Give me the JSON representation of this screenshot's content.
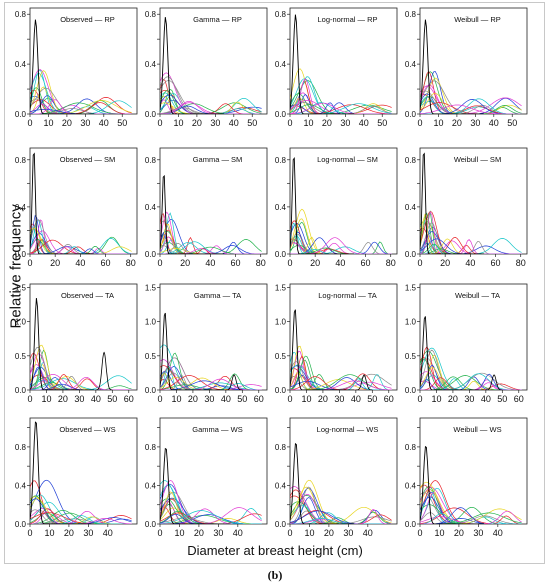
{
  "figure": {
    "ylabel": "Relative frequency",
    "xlabel": "Diameter at breast height (cm)",
    "caption": "(b)"
  },
  "colors": [
    "#000000",
    "#e8232a",
    "#21b24b",
    "#1f3fd6",
    "#16c6c9",
    "#e23ad3",
    "#e8d521",
    "#8c8c8c"
  ],
  "chart_data": [
    {
      "type": "line",
      "title": "Observed  — RP",
      "panel_row": 0,
      "panel_col": 0,
      "row": "RP",
      "model": "Observed",
      "xlim": [
        0,
        58
      ],
      "ylim": [
        0,
        0.85
      ],
      "xticks": [
        0,
        10,
        20,
        30,
        40,
        50
      ],
      "yticks": [
        0,
        0.2,
        0.4,
        0.6,
        0.8
      ],
      "ytick_labels": [
        "0.0",
        "",
        "0.4",
        "",
        "0.8"
      ],
      "spike_x": 3,
      "spike_y": 0.76
    },
    {
      "type": "line",
      "title": "Gamma  — RP",
      "panel_row": 0,
      "panel_col": 1,
      "row": "RP",
      "model": "Gamma",
      "xlim": [
        0,
        58
      ],
      "ylim": [
        0,
        0.85
      ],
      "xticks": [
        0,
        10,
        20,
        30,
        40,
        50
      ],
      "yticks": [
        0,
        0.2,
        0.4,
        0.6,
        0.8
      ],
      "ytick_labels": [
        "0.0",
        "",
        "0.4",
        "",
        "0.8"
      ],
      "spike_x": 3,
      "spike_y": 0.78
    },
    {
      "type": "line",
      "title": "Log-normal  — RP",
      "panel_row": 0,
      "panel_col": 2,
      "row": "RP",
      "model": "Log-normal",
      "xlim": [
        0,
        58
      ],
      "ylim": [
        0,
        0.85
      ],
      "xticks": [
        0,
        10,
        20,
        30,
        40,
        50
      ],
      "yticks": [
        0,
        0.2,
        0.4,
        0.6,
        0.8
      ],
      "ytick_labels": [
        "0.0",
        "",
        "0.4",
        "",
        "0.8"
      ],
      "spike_x": 3,
      "spike_y": 0.8
    },
    {
      "type": "line",
      "title": "Weibull  — RP",
      "panel_row": 0,
      "panel_col": 3,
      "row": "RP",
      "model": "Weibull",
      "xlim": [
        0,
        58
      ],
      "ylim": [
        0,
        0.85
      ],
      "xticks": [
        0,
        10,
        20,
        30,
        40,
        50
      ],
      "yticks": [
        0,
        0.2,
        0.4,
        0.6,
        0.8
      ],
      "ytick_labels": [
        "0.0",
        "",
        "0.4",
        "",
        "0.8"
      ],
      "spike_x": 3,
      "spike_y": 0.76
    },
    {
      "type": "line",
      "title": "Observed  — SM",
      "panel_row": 1,
      "panel_col": 0,
      "row": "SM",
      "model": "Observed",
      "xlim": [
        0,
        85
      ],
      "ylim": [
        0,
        0.9
      ],
      "xticks": [
        0,
        20,
        40,
        60,
        80
      ],
      "yticks": [
        0,
        0.2,
        0.4,
        0.6,
        0.8
      ],
      "ytick_labels": [
        "0.0",
        "",
        "0.4",
        "",
        "0.8"
      ],
      "spike_x": 3,
      "spike_y": 0.9
    },
    {
      "type": "line",
      "title": "Gamma  — SM",
      "panel_row": 1,
      "panel_col": 1,
      "row": "SM",
      "model": "Gamma",
      "xlim": [
        0,
        85
      ],
      "ylim": [
        0,
        0.9
      ],
      "xticks": [
        0,
        20,
        40,
        60,
        80
      ],
      "yticks": [
        0,
        0.2,
        0.4,
        0.6,
        0.8
      ],
      "ytick_labels": [
        "0.0",
        "",
        "0.4",
        "",
        "0.8"
      ],
      "spike_x": 3,
      "spike_y": 0.7
    },
    {
      "type": "line",
      "title": "Log-normal  — SM",
      "panel_row": 1,
      "panel_col": 2,
      "row": "SM",
      "model": "Log-normal",
      "xlim": [
        0,
        85
      ],
      "ylim": [
        0,
        0.9
      ],
      "xticks": [
        0,
        20,
        40,
        60,
        80
      ],
      "yticks": [
        0,
        0.2,
        0.4,
        0.6,
        0.8
      ],
      "ytick_labels": [
        "0.0",
        "",
        "0.4",
        "",
        "0.8"
      ],
      "spike_x": 3,
      "spike_y": 0.86
    },
    {
      "type": "line",
      "title": "Weibull  — SM",
      "panel_row": 1,
      "panel_col": 3,
      "row": "SM",
      "model": "Weibull",
      "xlim": [
        0,
        85
      ],
      "ylim": [
        0,
        0.9
      ],
      "xticks": [
        0,
        20,
        40,
        60,
        80
      ],
      "yticks": [
        0,
        0.2,
        0.4,
        0.6,
        0.8
      ],
      "ytick_labels": [
        "0.0",
        "",
        "0.4",
        "",
        "0.8"
      ],
      "spike_x": 3,
      "spike_y": 0.9
    },
    {
      "type": "line",
      "title": "Observed  — TA",
      "panel_row": 2,
      "panel_col": 0,
      "row": "TA",
      "model": "Observed",
      "xlim": [
        0,
        65
      ],
      "ylim": [
        0,
        1.55
      ],
      "xticks": [
        0,
        10,
        20,
        30,
        40,
        50,
        60
      ],
      "yticks": [
        0,
        0.5,
        1.0,
        1.5
      ],
      "ytick_labels": [
        "0.0",
        "0.5",
        "1.0",
        "1.5"
      ],
      "spike_x": 4,
      "spike_y": 1.35,
      "bump_x": 45,
      "bump_y": 0.55
    },
    {
      "type": "line",
      "title": "Gamma  — TA",
      "panel_row": 2,
      "panel_col": 1,
      "row": "TA",
      "model": "Gamma",
      "xlim": [
        0,
        65
      ],
      "ylim": [
        0,
        1.55
      ],
      "xticks": [
        0,
        10,
        20,
        30,
        40,
        50,
        60
      ],
      "yticks": [
        0,
        0.5,
        1.0,
        1.5
      ],
      "ytick_labels": [
        "0.0",
        "0.5",
        "1.0",
        "1.5"
      ],
      "spike_x": 3,
      "spike_y": 1.15,
      "bump_x": 45,
      "bump_y": 0.22
    },
    {
      "type": "line",
      "title": "Log-normal  — TA",
      "panel_row": 2,
      "panel_col": 2,
      "row": "TA",
      "model": "Log-normal",
      "xlim": [
        0,
        65
      ],
      "ylim": [
        0,
        1.55
      ],
      "xticks": [
        0,
        10,
        20,
        30,
        40,
        50,
        60
      ],
      "yticks": [
        0,
        0.5,
        1.0,
        1.5
      ],
      "ytick_labels": [
        "0.0",
        "0.5",
        "1.0",
        "1.5"
      ],
      "spike_x": 3,
      "spike_y": 1.2,
      "bump_x": 45,
      "bump_y": 0.22
    },
    {
      "type": "line",
      "title": "Weibull  — TA",
      "panel_row": 2,
      "panel_col": 3,
      "row": "TA",
      "model": "Weibull",
      "xlim": [
        0,
        65
      ],
      "ylim": [
        0,
        1.55
      ],
      "xticks": [
        0,
        10,
        20,
        30,
        40,
        50,
        60
      ],
      "yticks": [
        0,
        0.5,
        1.0,
        1.5
      ],
      "ytick_labels": [
        "0.0",
        "0.5",
        "1.0",
        "1.5"
      ],
      "spike_x": 3,
      "spike_y": 1.1,
      "bump_x": 45,
      "bump_y": 0.22
    },
    {
      "type": "line",
      "title": "Observed  — WS",
      "panel_row": 3,
      "panel_col": 0,
      "row": "WS",
      "model": "Observed",
      "xlim": [
        0,
        55
      ],
      "ylim": [
        0,
        1.1
      ],
      "xticks": [
        0,
        10,
        20,
        30,
        40
      ],
      "yticks": [
        0,
        0.2,
        0.4,
        0.6,
        0.8,
        1.0
      ],
      "ytick_labels": [
        "0.0",
        "",
        "0.4",
        "",
        "0.8",
        ""
      ],
      "spike_x": 3,
      "spike_y": 1.08
    },
    {
      "type": "line",
      "title": "Gamma  — WS",
      "panel_row": 3,
      "panel_col": 1,
      "row": "WS",
      "model": "Gamma",
      "xlim": [
        0,
        55
      ],
      "ylim": [
        0,
        1.1
      ],
      "xticks": [
        0,
        10,
        20,
        30,
        40
      ],
      "yticks": [
        0,
        0.2,
        0.4,
        0.6,
        0.8,
        1.0
      ],
      "ytick_labels": [
        "0.0",
        "",
        "0.4",
        "",
        "0.8",
        ""
      ],
      "spike_x": 3,
      "spike_y": 0.8
    },
    {
      "type": "line",
      "title": "Log-normal  — WS",
      "panel_row": 3,
      "panel_col": 2,
      "row": "WS",
      "model": "Log-normal",
      "xlim": [
        0,
        55
      ],
      "ylim": [
        0,
        1.1
      ],
      "xticks": [
        0,
        10,
        20,
        30,
        40
      ],
      "yticks": [
        0,
        0.2,
        0.4,
        0.6,
        0.8,
        1.0
      ],
      "ytick_labels": [
        "0.0",
        "",
        "0.4",
        "",
        "0.8",
        ""
      ],
      "spike_x": 3,
      "spike_y": 0.85
    },
    {
      "type": "line",
      "title": "Weibull  — WS",
      "panel_row": 3,
      "panel_col": 3,
      "row": "WS",
      "model": "Weibull",
      "xlim": [
        0,
        55
      ],
      "ylim": [
        0,
        1.1
      ],
      "xticks": [
        0,
        10,
        20,
        30,
        40
      ],
      "yticks": [
        0,
        0.2,
        0.4,
        0.6,
        0.8,
        1.0
      ],
      "ytick_labels": [
        "0.0",
        "",
        "0.4",
        "",
        "0.8",
        ""
      ],
      "spike_x": 3,
      "spike_y": 0.82
    }
  ]
}
